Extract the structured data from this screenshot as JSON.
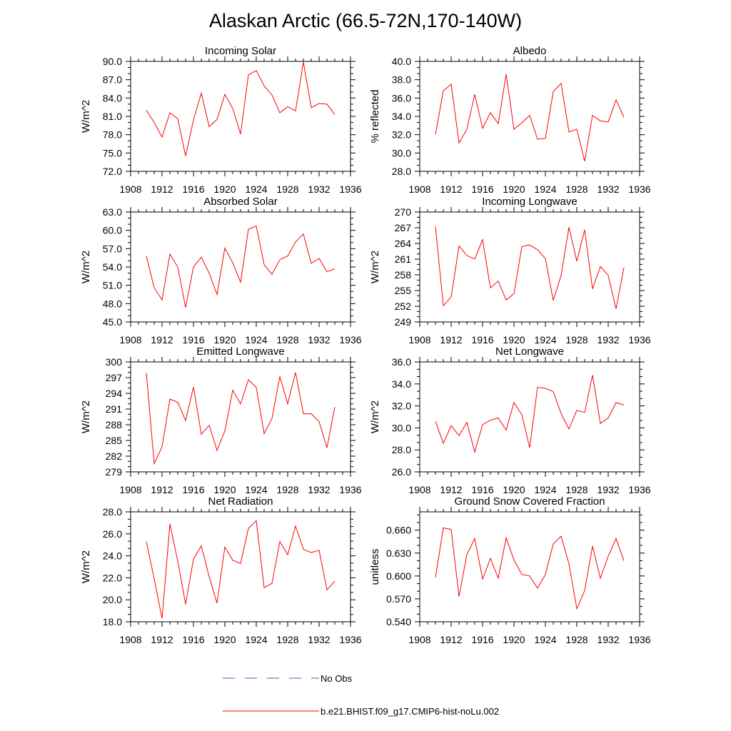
{
  "title": "Alaskan Arctic (66.5-72N,170-140W)",
  "colors": {
    "model_line": "#ff0000",
    "obs_line": "#4060c0",
    "axes": "#000000"
  },
  "legend": {
    "items": [
      {
        "label": "No Obs",
        "style": "dashed",
        "color": "#4060c0"
      },
      {
        "label": "b.e21.BHIST.f09_g17.CMIP6-hist-noLu.002",
        "style": "solid",
        "color": "#ff0000"
      }
    ]
  },
  "chart_data": [
    {
      "type": "line",
      "title": "Incoming Solar",
      "xlabel": "",
      "ylabel": "W/m^2",
      "xlim": [
        1908,
        1936
      ],
      "ylim": [
        72,
        90
      ],
      "xticks": [
        "1908",
        "1912",
        "1916",
        "1920",
        "1924",
        "1928",
        "1932",
        "1936"
      ],
      "yticks": [
        "72.0",
        "75.0",
        "78.0",
        "81.0",
        "84.0",
        "87.0",
        "90.0"
      ],
      "x": [
        1910,
        1911,
        1912,
        1913,
        1914,
        1915,
        1916,
        1917,
        1918,
        1919,
        1920,
        1921,
        1922,
        1923,
        1924,
        1925,
        1926,
        1927,
        1928,
        1929,
        1930,
        1931,
        1932,
        1933,
        1934
      ],
      "series": [
        {
          "name": "b.e21.BHIST.f09_g17.CMIP6-hist-noLu.002",
          "values": [
            82.0,
            80.0,
            77.6,
            81.6,
            80.6,
            74.5,
            80.4,
            84.8,
            79.3,
            80.5,
            84.6,
            82.3,
            78.1,
            87.8,
            88.5,
            86.0,
            84.5,
            81.6,
            82.6,
            81.9,
            89.9,
            82.4,
            83.1,
            83.0,
            81.3
          ]
        }
      ]
    },
    {
      "type": "line",
      "title": "Albedo",
      "xlabel": "",
      "ylabel": "% reflected",
      "xlim": [
        1908,
        1936
      ],
      "ylim": [
        28,
        40
      ],
      "xticks": [
        "1908",
        "1912",
        "1916",
        "1920",
        "1924",
        "1928",
        "1932",
        "1936"
      ],
      "yticks": [
        "28.0",
        "30.0",
        "32.0",
        "34.0",
        "36.0",
        "38.0",
        "40.0"
      ],
      "x": [
        1910,
        1911,
        1912,
        1913,
        1914,
        1915,
        1916,
        1917,
        1918,
        1919,
        1920,
        1921,
        1922,
        1923,
        1924,
        1925,
        1926,
        1927,
        1928,
        1929,
        1930,
        1931,
        1932,
        1933,
        1934
      ],
      "series": [
        {
          "name": "b.e21.BHIST.f09_g17.CMIP6-hist-noLu.002",
          "values": [
            32.0,
            36.8,
            37.5,
            31.1,
            32.6,
            36.4,
            32.7,
            34.4,
            33.2,
            38.6,
            32.6,
            33.3,
            34.1,
            31.5,
            31.6,
            36.7,
            37.6,
            32.3,
            32.6,
            29.1,
            34.1,
            33.5,
            33.4,
            35.8,
            33.9
          ]
        }
      ]
    },
    {
      "type": "line",
      "title": "Absorbed Solar",
      "xlabel": "",
      "ylabel": "W/m^2",
      "xlim": [
        1908,
        1936
      ],
      "ylim": [
        45,
        63
      ],
      "xticks": [
        "1908",
        "1912",
        "1916",
        "1920",
        "1924",
        "1928",
        "1932",
        "1936"
      ],
      "yticks": [
        "45.0",
        "48.0",
        "51.0",
        "54.0",
        "57.0",
        "60.0",
        "63.0"
      ],
      "x": [
        1910,
        1911,
        1912,
        1913,
        1914,
        1915,
        1916,
        1917,
        1918,
        1919,
        1920,
        1921,
        1922,
        1923,
        1924,
        1925,
        1926,
        1927,
        1928,
        1929,
        1930,
        1931,
        1932,
        1933,
        1934
      ],
      "series": [
        {
          "name": "b.e21.BHIST.f09_g17.CMIP6-hist-noLu.002",
          "values": [
            55.8,
            50.6,
            48.6,
            56.1,
            54.0,
            47.4,
            54.0,
            55.6,
            53.0,
            49.5,
            57.1,
            54.7,
            51.5,
            60.2,
            60.7,
            54.4,
            52.8,
            55.2,
            55.8,
            58.1,
            59.4,
            54.6,
            55.4,
            53.2,
            53.7
          ]
        }
      ]
    },
    {
      "type": "line",
      "title": "Incoming Longwave",
      "xlabel": "",
      "ylabel": "W/m^2",
      "xlim": [
        1908,
        1936
      ],
      "ylim": [
        249,
        270
      ],
      "xticks": [
        "1908",
        "1912",
        "1916",
        "1920",
        "1924",
        "1928",
        "1932",
        "1936"
      ],
      "yticks": [
        "249",
        "252",
        "255",
        "258",
        "261",
        "264",
        "267",
        "270"
      ],
      "x": [
        1910,
        1911,
        1912,
        1913,
        1914,
        1915,
        1916,
        1917,
        1918,
        1919,
        1920,
        1921,
        1922,
        1923,
        1924,
        1925,
        1926,
        1927,
        1928,
        1929,
        1930,
        1931,
        1932,
        1933,
        1934
      ],
      "series": [
        {
          "name": "b.e21.BHIST.f09_g17.CMIP6-hist-noLu.002",
          "values": [
            267.2,
            252.1,
            253.8,
            263.5,
            261.7,
            261.0,
            264.7,
            255.5,
            256.8,
            253.2,
            254.4,
            263.4,
            263.7,
            262.8,
            261.1,
            253.1,
            257.9,
            267.1,
            260.6,
            266.6,
            255.3,
            259.6,
            257.9,
            251.5,
            259.4
          ]
        }
      ]
    },
    {
      "type": "line",
      "title": "Emitted Longwave",
      "xlabel": "",
      "ylabel": "W/m^2",
      "xlim": [
        1908,
        1936
      ],
      "ylim": [
        279,
        300
      ],
      "xticks": [
        "1908",
        "1912",
        "1916",
        "1920",
        "1924",
        "1928",
        "1932",
        "1936"
      ],
      "yticks": [
        "279",
        "282",
        "285",
        "288",
        "291",
        "294",
        "297",
        "300"
      ],
      "x": [
        1910,
        1911,
        1912,
        1913,
        1914,
        1915,
        1916,
        1917,
        1918,
        1919,
        1920,
        1921,
        1922,
        1923,
        1924,
        1925,
        1926,
        1927,
        1928,
        1929,
        1930,
        1931,
        1932,
        1933,
        1934
      ],
      "series": [
        {
          "name": "b.e21.BHIST.f09_g17.CMIP6-hist-noLu.002",
          "values": [
            297.9,
            280.6,
            283.8,
            292.9,
            292.3,
            288.8,
            295.2,
            286.2,
            287.9,
            283.1,
            286.8,
            294.6,
            292.0,
            296.6,
            295.1,
            286.3,
            289.2,
            297.2,
            292.0,
            298.0,
            290.1,
            290.1,
            288.6,
            283.6,
            291.4
          ]
        }
      ]
    },
    {
      "type": "line",
      "title": "Net Longwave",
      "xlabel": "",
      "ylabel": "W/m^2",
      "xlim": [
        1908,
        1936
      ],
      "ylim": [
        26,
        36
      ],
      "xticks": [
        "1908",
        "1912",
        "1916",
        "1920",
        "1924",
        "1928",
        "1932",
        "1936"
      ],
      "yticks": [
        "26.0",
        "28.0",
        "30.0",
        "32.0",
        "34.0",
        "36.0"
      ],
      "x": [
        1910,
        1911,
        1912,
        1913,
        1914,
        1915,
        1916,
        1917,
        1918,
        1919,
        1920,
        1921,
        1922,
        1923,
        1924,
        1925,
        1926,
        1927,
        1928,
        1929,
        1930,
        1931,
        1932,
        1933,
        1934
      ],
      "series": [
        {
          "name": "b.e21.BHIST.f09_g17.CMIP6-hist-noLu.002",
          "values": [
            30.6,
            28.6,
            30.2,
            29.3,
            30.5,
            27.8,
            30.3,
            30.7,
            30.9,
            29.8,
            32.3,
            31.2,
            28.2,
            33.7,
            33.6,
            33.3,
            31.3,
            29.9,
            31.6,
            31.4,
            34.8,
            30.4,
            30.9,
            32.3,
            32.1
          ]
        }
      ]
    },
    {
      "type": "line",
      "title": "Net Radiation",
      "xlabel": "",
      "ylabel": "W/m^2",
      "xlim": [
        1908,
        1936
      ],
      "ylim": [
        18,
        28
      ],
      "xticks": [
        "1908",
        "1912",
        "1916",
        "1920",
        "1924",
        "1928",
        "1932",
        "1936"
      ],
      "yticks": [
        "18.0",
        "20.0",
        "22.0",
        "24.0",
        "26.0",
        "28.0"
      ],
      "x": [
        1910,
        1911,
        1912,
        1913,
        1914,
        1915,
        1916,
        1917,
        1918,
        1919,
        1920,
        1921,
        1922,
        1923,
        1924,
        1925,
        1926,
        1927,
        1928,
        1929,
        1930,
        1931,
        1932,
        1933,
        1934
      ],
      "series": [
        {
          "name": "b.e21.BHIST.f09_g17.CMIP6-hist-noLu.002",
          "values": [
            25.3,
            21.9,
            18.3,
            26.9,
            23.5,
            19.6,
            23.7,
            24.9,
            22.1,
            19.7,
            24.8,
            23.6,
            23.3,
            26.5,
            27.2,
            21.1,
            21.5,
            25.3,
            24.1,
            26.7,
            24.6,
            24.3,
            24.5,
            20.9,
            21.7
          ]
        }
      ]
    },
    {
      "type": "line",
      "title": "Ground Snow Covered Fraction",
      "xlabel": "",
      "ylabel": "unitless",
      "xlim": [
        1908,
        1936
      ],
      "ylim": [
        0.54,
        0.684
      ],
      "xticks": [
        "1908",
        "1912",
        "1916",
        "1920",
        "1924",
        "1928",
        "1932",
        "1936"
      ],
      "yticks": [
        "0.540",
        "0.570",
        "0.600",
        "0.630",
        "0.660"
      ],
      "x": [
        1910,
        1911,
        1912,
        1913,
        1914,
        1915,
        1916,
        1917,
        1918,
        1919,
        1920,
        1921,
        1922,
        1923,
        1924,
        1925,
        1926,
        1927,
        1928,
        1929,
        1930,
        1931,
        1932,
        1933,
        1934
      ],
      "series": [
        {
          "name": "b.e21.BHIST.f09_g17.CMIP6-hist-noLu.002",
          "values": [
            0.598,
            0.663,
            0.661,
            0.573,
            0.628,
            0.649,
            0.596,
            0.623,
            0.597,
            0.65,
            0.621,
            0.602,
            0.6,
            0.584,
            0.602,
            0.642,
            0.652,
            0.616,
            0.557,
            0.581,
            0.639,
            0.597,
            0.626,
            0.649,
            0.62
          ]
        }
      ]
    }
  ]
}
